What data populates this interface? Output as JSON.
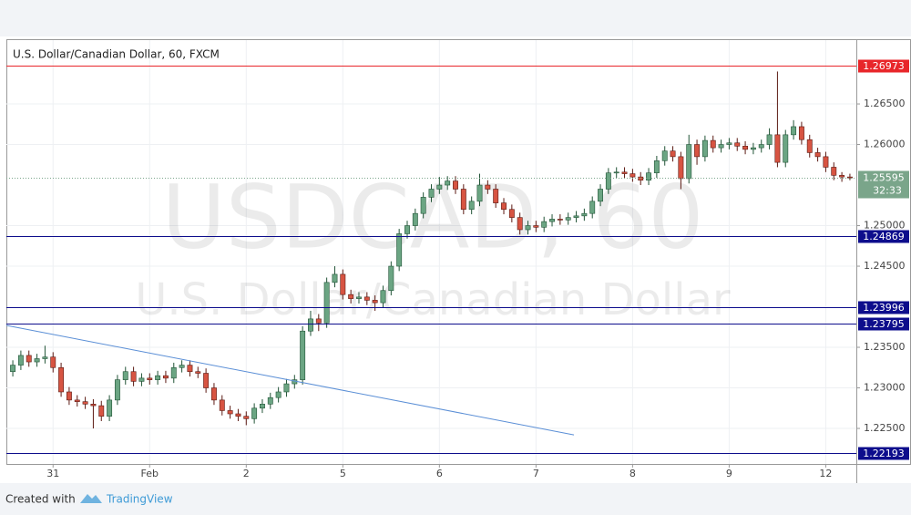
{
  "chart_data": {
    "type": "candlestick",
    "title": "U.S. Dollar/Canadian Dollar, 60, FXCM",
    "watermark": "USDCAD, 60",
    "watermark_subtitle": "U.S. Dollar/Canadian Dollar",
    "countdown": "32:33",
    "footer": {
      "prefix": "Created with",
      "brand": "TradingView"
    },
    "up_color": "#6ba583",
    "down_color": "#d75442",
    "up_border": "#225437",
    "down_border": "#5b1a13",
    "grid": true,
    "categories": [
      null,
      null,
      null,
      null,
      null,
      "31",
      null,
      null,
      null,
      null,
      null,
      null,
      null,
      null,
      null,
      null,
      null,
      "Feb",
      null,
      null,
      null,
      null,
      null,
      null,
      null,
      null,
      null,
      null,
      null,
      "2",
      null,
      null,
      null,
      null,
      null,
      null,
      null,
      null,
      null,
      null,
      null,
      "5",
      null,
      null,
      null,
      null,
      null,
      null,
      null,
      null,
      null,
      null,
      null,
      "6",
      null,
      null,
      null,
      null,
      null,
      null,
      null,
      null,
      null,
      null,
      null,
      "7",
      null,
      null,
      null,
      null,
      null,
      null,
      null,
      null,
      null,
      null,
      null,
      "8",
      null,
      null,
      null,
      null,
      null,
      null,
      null,
      null,
      null,
      null,
      null,
      "9",
      null,
      null,
      null,
      null,
      null,
      null,
      null,
      null,
      null,
      null,
      null,
      "12",
      null,
      null,
      null
    ],
    "open": [
      1.232,
      1.2328,
      1.234,
      1.2332,
      1.2336,
      1.2338,
      1.2325,
      1.2295,
      1.2285,
      1.2283,
      1.228,
      1.2278,
      1.2265,
      1.2285,
      1.231,
      1.232,
      1.2308,
      1.2312,
      1.231,
      1.2315,
      1.2312,
      1.2325,
      1.2328,
      1.232,
      1.2318,
      1.23,
      1.2285,
      1.2272,
      1.2268,
      1.2265,
      1.2262,
      1.2275,
      1.228,
      1.2288,
      1.2295,
      1.2305,
      1.231,
      1.237,
      1.2385,
      1.238,
      1.243,
      1.244,
      1.2415,
      1.241,
      1.2412,
      1.2408,
      1.2405,
      1.242,
      1.245,
      1.249,
      1.25,
      1.2515,
      1.2535,
      1.2545,
      1.255,
      1.2555,
      1.2545,
      1.252,
      1.253,
      1.255,
      1.2545,
      1.2528,
      1.252,
      1.251,
      1.2495,
      1.25,
      1.2498,
      1.2505,
      1.2508,
      1.2507,
      1.251,
      1.2512,
      1.2515,
      1.253,
      1.2545,
      1.2565,
      1.2566,
      1.2564,
      1.256,
      1.2556,
      1.2565,
      1.258,
      1.2592,
      1.2585,
      1.2558,
      1.26,
      1.2585,
      1.2605,
      1.2596,
      1.26,
      1.2602,
      1.2598,
      1.2594,
      1.2596,
      1.26,
      1.2612,
      1.2578,
      1.2612,
      1.2622,
      1.2606,
      1.259,
      1.2585,
      1.2572,
      1.2562,
      1.256
    ],
    "high": [
      1.2334,
      1.2346,
      1.2346,
      1.2342,
      1.2352,
      1.2344,
      1.2331,
      1.2301,
      1.2291,
      1.2289,
      1.2286,
      1.2284,
      1.2291,
      1.2316,
      1.2326,
      1.2326,
      1.2318,
      1.2318,
      1.2321,
      1.2321,
      1.2331,
      1.2334,
      1.2334,
      1.2326,
      1.2324,
      1.2306,
      1.2291,
      1.2278,
      1.2274,
      1.2271,
      1.2281,
      1.2286,
      1.2294,
      1.2301,
      1.2311,
      1.2316,
      1.2376,
      1.2395,
      1.2391,
      1.2436,
      1.245,
      1.2446,
      1.2421,
      1.2418,
      1.2418,
      1.2414,
      1.2426,
      1.2456,
      1.2496,
      1.2506,
      1.2521,
      1.2541,
      1.2551,
      1.256,
      1.2561,
      1.2561,
      1.2551,
      1.2536,
      1.2564,
      1.2556,
      1.2551,
      1.2534,
      1.2526,
      1.2516,
      1.2506,
      1.2506,
      1.2511,
      1.2514,
      1.2514,
      1.2516,
      1.2518,
      1.2521,
      1.2536,
      1.2551,
      1.2571,
      1.2572,
      1.2572,
      1.257,
      1.2566,
      1.2571,
      1.2586,
      1.2598,
      1.2598,
      1.2591,
      1.2612,
      1.2606,
      1.2611,
      1.2611,
      1.2606,
      1.2608,
      1.2608,
      1.2604,
      1.2602,
      1.2606,
      1.262,
      1.269,
      1.2618,
      1.263,
      1.2628,
      1.2612,
      1.2596,
      1.2591,
      1.2578,
      1.2566,
      1.2564
    ],
    "low": [
      1.2314,
      1.2322,
      1.2326,
      1.2326,
      1.233,
      1.2319,
      1.2289,
      1.2279,
      1.2277,
      1.2274,
      1.225,
      1.2259,
      1.2259,
      1.2279,
      1.2304,
      1.2302,
      1.2302,
      1.2304,
      1.2304,
      1.2306,
      1.2306,
      1.2319,
      1.2314,
      1.2312,
      1.2294,
      1.2279,
      1.2266,
      1.2262,
      1.2259,
      1.2254,
      1.2256,
      1.2269,
      1.2274,
      1.2282,
      1.2289,
      1.2299,
      1.2304,
      1.2364,
      1.237,
      1.2374,
      1.2424,
      1.2409,
      1.2404,
      1.2404,
      1.2402,
      1.2395,
      1.2399,
      1.2414,
      1.2444,
      1.2484,
      1.2494,
      1.2509,
      1.2529,
      1.2539,
      1.2544,
      1.2539,
      1.2514,
      1.2514,
      1.2524,
      1.2539,
      1.2522,
      1.2514,
      1.2504,
      1.2489,
      1.2489,
      1.2492,
      1.2492,
      1.2499,
      1.2501,
      1.2501,
      1.2504,
      1.2506,
      1.2509,
      1.2524,
      1.2539,
      1.2559,
      1.2558,
      1.2554,
      1.255,
      1.255,
      1.2559,
      1.2574,
      1.2579,
      1.2545,
      1.2552,
      1.2575,
      1.2579,
      1.259,
      1.259,
      1.2594,
      1.2592,
      1.2588,
      1.2588,
      1.259,
      1.2594,
      1.2572,
      1.2572,
      1.2606,
      1.26,
      1.2584,
      1.2579,
      1.2566,
      1.2556,
      1.2554,
      1.2556
    ],
    "close": [
      1.2328,
      1.234,
      1.2332,
      1.2336,
      1.2338,
      1.2325,
      1.2295,
      1.2285,
      1.2283,
      1.228,
      1.2278,
      1.2265,
      1.2285,
      1.231,
      1.232,
      1.2308,
      1.2312,
      1.231,
      1.2315,
      1.2312,
      1.2325,
      1.2328,
      1.232,
      1.2318,
      1.23,
      1.2285,
      1.2272,
      1.2268,
      1.2265,
      1.2262,
      1.2275,
      1.228,
      1.2288,
      1.2295,
      1.2305,
      1.231,
      1.237,
      1.2385,
      1.238,
      1.243,
      1.244,
      1.2415,
      1.241,
      1.2412,
      1.2408,
      1.2405,
      1.242,
      1.245,
      1.249,
      1.25,
      1.2515,
      1.2535,
      1.2545,
      1.255,
      1.2555,
      1.2545,
      1.252,
      1.253,
      1.255,
      1.2545,
      1.2528,
      1.252,
      1.251,
      1.2495,
      1.25,
      1.2498,
      1.2505,
      1.2508,
      1.2507,
      1.251,
      1.2512,
      1.2515,
      1.253,
      1.2545,
      1.2565,
      1.2566,
      1.2564,
      1.256,
      1.2556,
      1.2565,
      1.258,
      1.2592,
      1.2585,
      1.2558,
      1.26,
      1.2585,
      1.2605,
      1.2596,
      1.26,
      1.2602,
      1.2598,
      1.2594,
      1.2596,
      1.26,
      1.2612,
      1.2578,
      1.2612,
      1.2622,
      1.2606,
      1.259,
      1.2585,
      1.2572,
      1.2562,
      1.256,
      1.25595
    ],
    "ylim": [
      1.22062,
      1.27287
    ],
    "yticks": [
      {
        "value": 1.225,
        "label": "1.22500"
      },
      {
        "value": 1.23,
        "label": "1.23000"
      },
      {
        "value": 1.235,
        "label": "1.23500"
      },
      {
        "value": 1.245,
        "label": "1.24500"
      },
      {
        "value": 1.25,
        "label": "1.25000"
      },
      {
        "value": 1.26,
        "label": "1.26000"
      },
      {
        "value": 1.265,
        "label": "1.26500"
      }
    ],
    "levels": [
      {
        "value": 1.26973,
        "color": "#e8262a"
      },
      {
        "value": 1.24869,
        "color": "#0d0d8c"
      },
      {
        "value": 1.23996,
        "color": "#0d0d8c"
      },
      {
        "value": 1.23795,
        "color": "#0d0d8c"
      },
      {
        "value": 1.22193,
        "color": "#0d0d8c"
      }
    ],
    "trendline": {
      "color": "#5b8fd6",
      "values": [
        1.2377,
        1.2242
      ]
    },
    "last_color": "#7aa58a"
  }
}
